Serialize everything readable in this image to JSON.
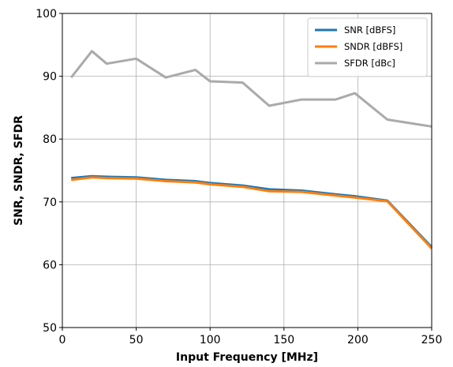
{
  "chart_data": {
    "type": "line",
    "xlabel": "Input Frequency [MHz]",
    "ylabel": "SNR, SNDR, SFDR",
    "xlim": [
      0,
      250
    ],
    "ylim": [
      50,
      100
    ],
    "xticks": [
      0,
      50,
      100,
      150,
      200,
      250
    ],
    "yticks": [
      50,
      60,
      70,
      80,
      90,
      100
    ],
    "grid": true,
    "legend_position": "top-right",
    "series": [
      {
        "name": "SNR [dBFS]",
        "color": "#1f77b4",
        "x": [
          6,
          20,
          30,
          50,
          70,
          90,
          100,
          122,
          140,
          162,
          185,
          198,
          220,
          250
        ],
        "y": [
          73.8,
          74.1,
          74.0,
          73.9,
          73.5,
          73.3,
          73.0,
          72.6,
          72.0,
          71.8,
          71.2,
          70.9,
          70.2,
          62.8
        ]
      },
      {
        "name": "SNDR [dBFS]",
        "color": "#ff7f0e",
        "x": [
          6,
          20,
          30,
          50,
          70,
          90,
          100,
          122,
          140,
          162,
          185,
          198,
          220,
          250
        ],
        "y": [
          73.5,
          73.9,
          73.8,
          73.7,
          73.3,
          73.1,
          72.8,
          72.4,
          71.7,
          71.6,
          71.0,
          70.7,
          70.1,
          62.6
        ]
      },
      {
        "name": "SFDR [dBc]",
        "color": "#aaaaaa",
        "x": [
          6,
          20,
          30,
          50,
          70,
          90,
          100,
          122,
          140,
          162,
          185,
          198,
          220,
          250
        ],
        "y": [
          89.8,
          94.0,
          92.0,
          92.8,
          89.8,
          91.0,
          89.2,
          89.0,
          85.3,
          86.3,
          86.3,
          87.3,
          83.1,
          82.0
        ]
      }
    ]
  }
}
